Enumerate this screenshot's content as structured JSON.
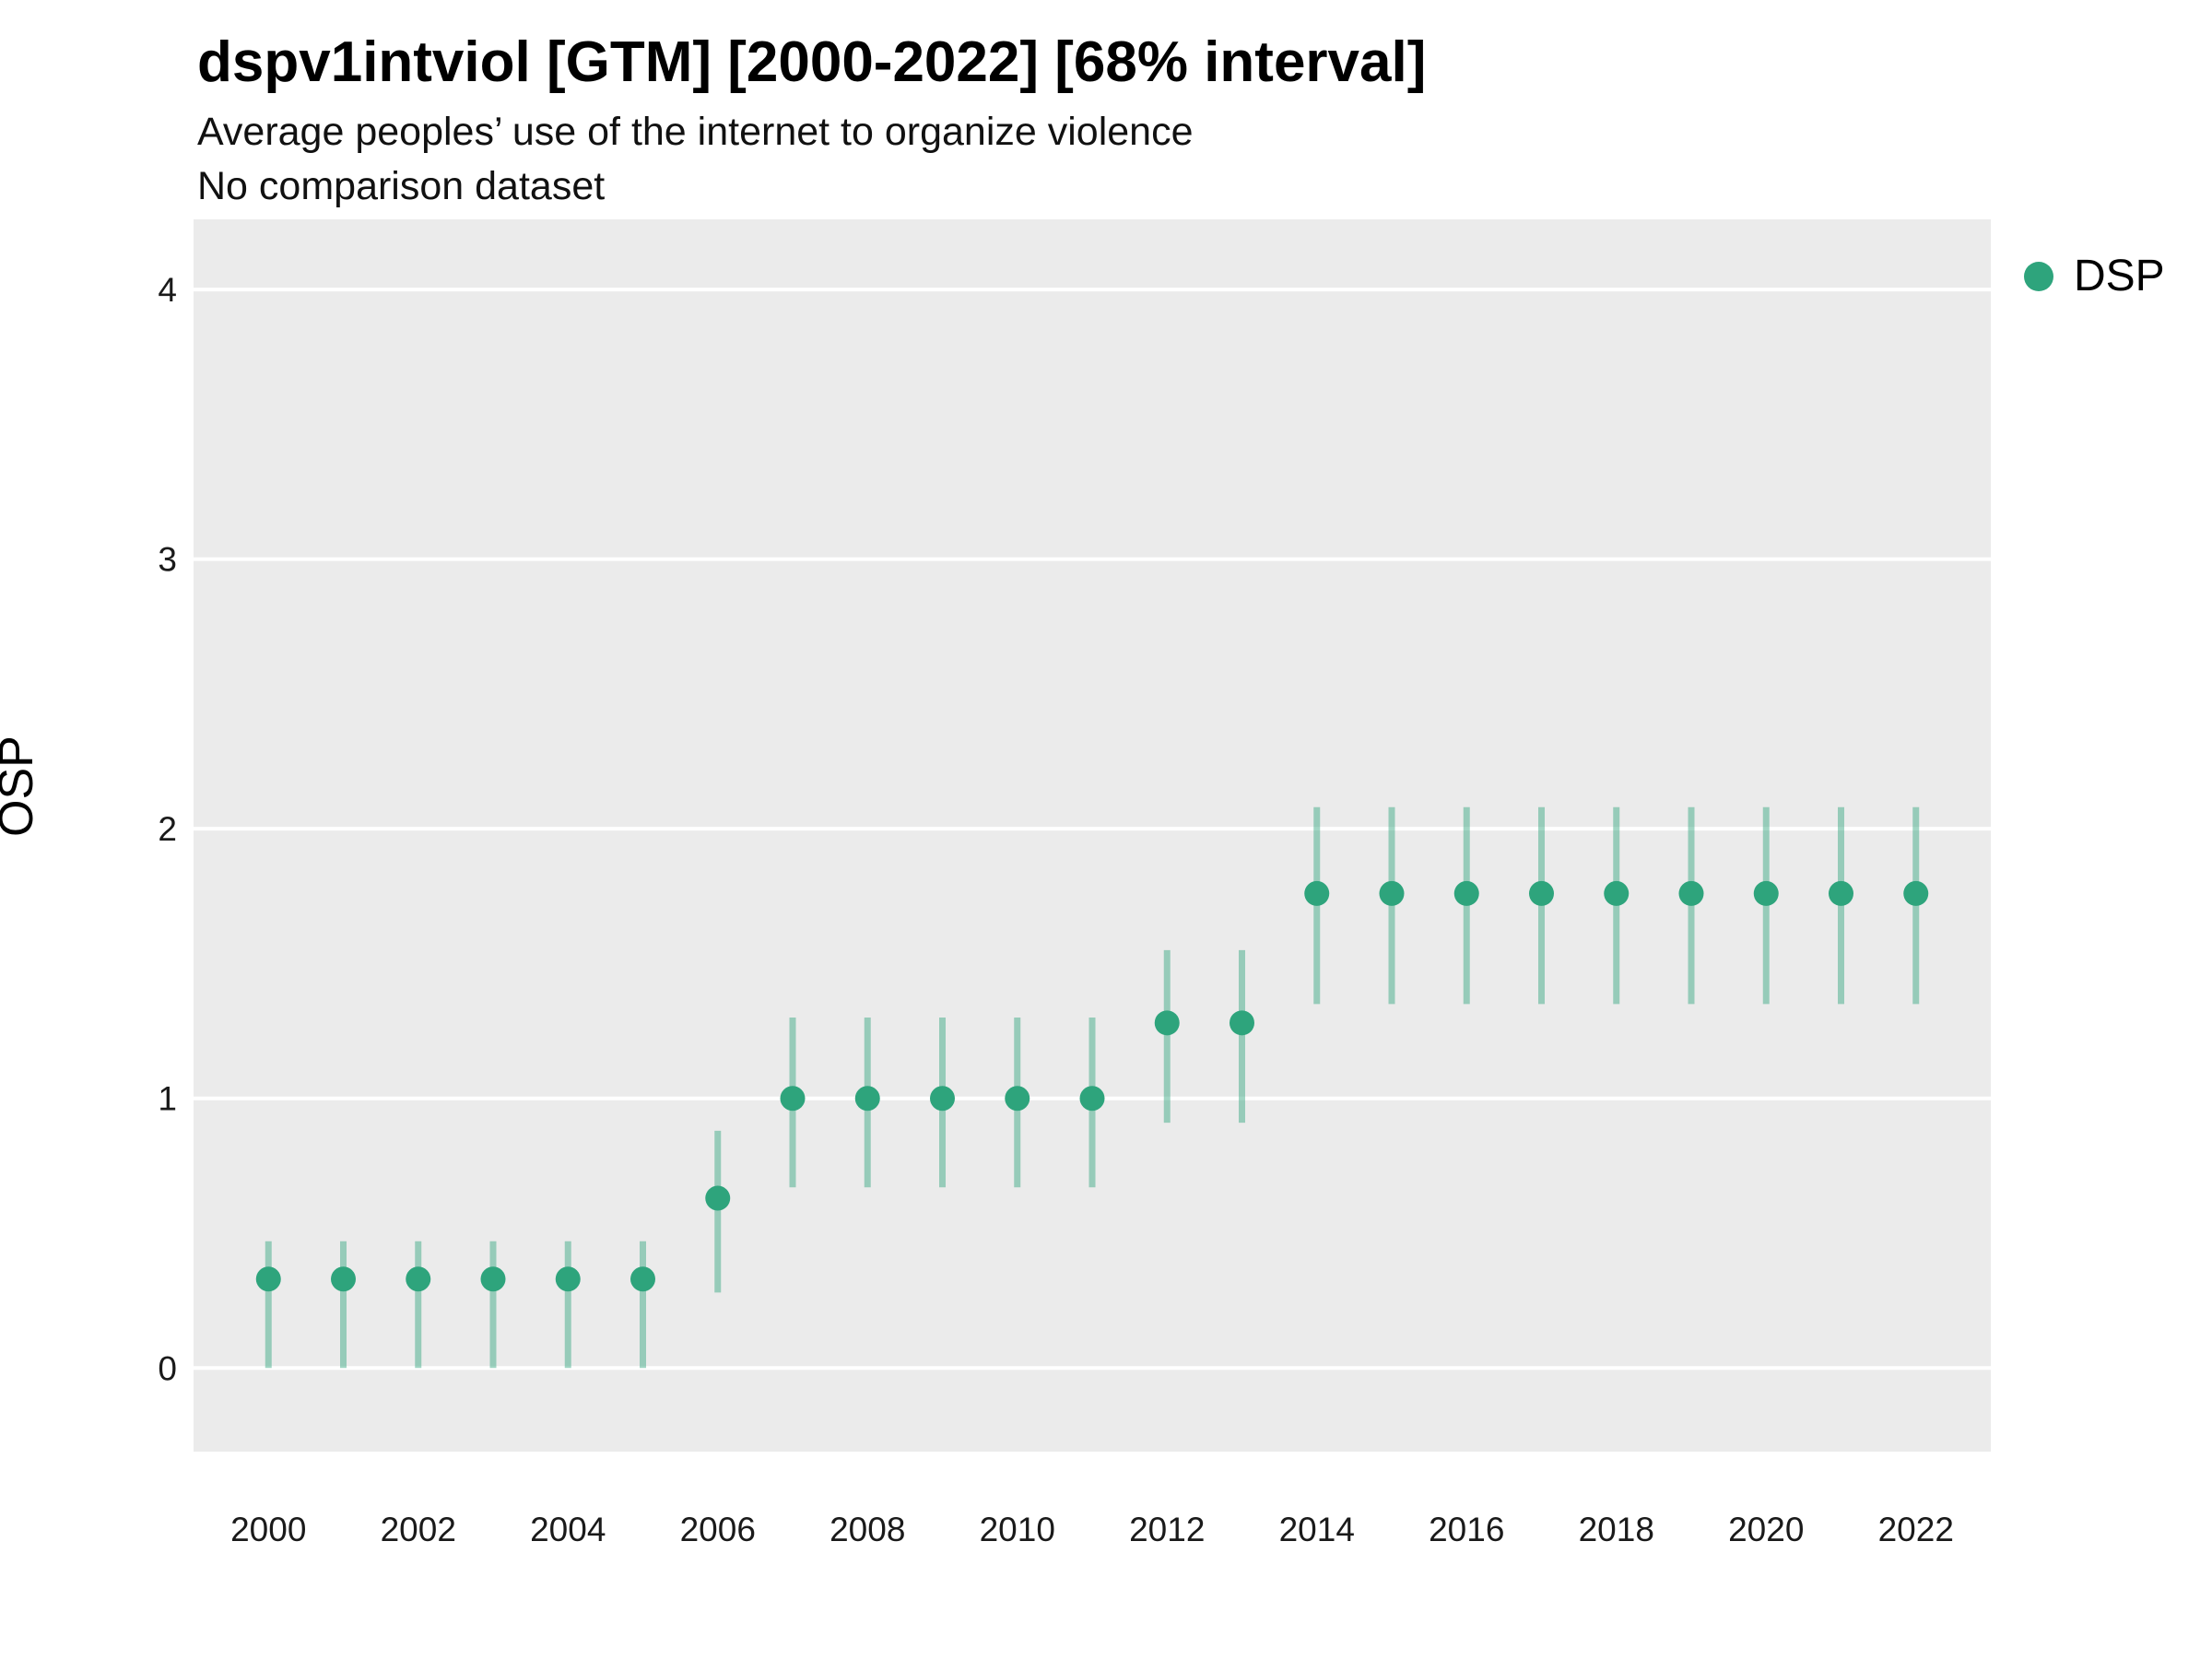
{
  "header": {
    "title": "dspv1intviol [GTM] [2000-2022] [68% interval]",
    "subtitle": "Average peoples’ use of the internet to organize violence",
    "note": "No comparison dataset"
  },
  "legend": {
    "items": [
      {
        "label": "DSP",
        "color": "#2EA47C"
      }
    ]
  },
  "chart_data": {
    "type": "scatter",
    "title": "dspv1intviol [GTM] [2000-2022] [68% interval]",
    "subtitle": "Average peoples’ use of the internet to organize violence",
    "note": "No comparison dataset",
    "interval": "68%",
    "xlabel": "",
    "ylabel": "OSP",
    "legend_position": "right",
    "grid": "major-horizontal",
    "x": [
      2000,
      2001,
      2002,
      2003,
      2004,
      2005,
      2006,
      2007,
      2008,
      2009,
      2010,
      2011,
      2012,
      2013,
      2014,
      2015,
      2016,
      2017,
      2018,
      2019,
      2020,
      2021,
      2022
    ],
    "series": [
      {
        "name": "DSP",
        "estimates": [
          0.33,
          0.33,
          0.33,
          0.33,
          0.33,
          0.33,
          0.63,
          1.0,
          1.0,
          1.0,
          1.0,
          1.0,
          1.28,
          1.28,
          1.76,
          1.76,
          1.76,
          1.76,
          1.76,
          1.76,
          1.76,
          1.76,
          1.76
        ],
        "lower": [
          0.0,
          0.0,
          0.0,
          0.0,
          0.0,
          0.0,
          0.28,
          0.67,
          0.67,
          0.67,
          0.67,
          0.67,
          0.91,
          0.91,
          1.35,
          1.35,
          1.35,
          1.35,
          1.35,
          1.35,
          1.35,
          1.35,
          1.35
        ],
        "upper": [
          0.47,
          0.47,
          0.47,
          0.47,
          0.47,
          0.47,
          0.88,
          1.3,
          1.3,
          1.3,
          1.3,
          1.3,
          1.55,
          1.55,
          2.08,
          2.08,
          2.08,
          2.08,
          2.08,
          2.08,
          2.08,
          2.08,
          2.08
        ]
      }
    ],
    "x_ticks": [
      2000,
      2002,
      2004,
      2006,
      2008,
      2010,
      2012,
      2014,
      2016,
      2018,
      2020,
      2022
    ],
    "y_ticks": [
      0,
      1,
      2,
      3,
      4
    ],
    "xlim": [
      1999,
      2023
    ],
    "ylim": [
      -0.31,
      4.26
    ],
    "colors": {
      "point": "#2EA47C",
      "interval": "rgba(46,164,124,0.45)",
      "panel_bg": "#EBEBEB",
      "grid": "#FFFFFF",
      "axis_text": "#1A1A1A"
    }
  }
}
